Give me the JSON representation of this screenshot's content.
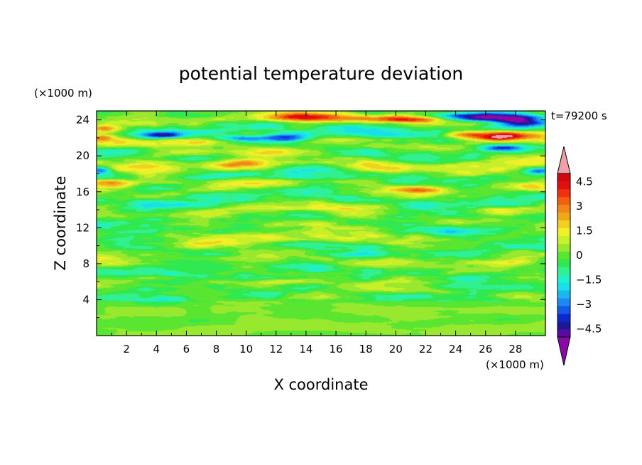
{
  "chart_data": {
    "type": "heatmap",
    "title": "potential temperature deviation",
    "xlabel": "X coordinate",
    "ylabel": "Z coordinate",
    "x_unit": "(×1000 m)",
    "y_unit": "(×1000 m)",
    "time_label": "t=79200 s",
    "xlim": [
      0,
      30
    ],
    "ylim": [
      0,
      25
    ],
    "x_ticks": [
      2,
      4,
      6,
      8,
      10,
      12,
      14,
      16,
      18,
      20,
      22,
      24,
      26,
      28
    ],
    "y_ticks": [
      4,
      8,
      12,
      16,
      20,
      24
    ],
    "colorbar": {
      "levels": [
        -5.5,
        -5,
        -4.5,
        -4,
        -3.5,
        -3,
        -2.5,
        -2,
        -1.5,
        -1,
        -0.5,
        0,
        0.5,
        1,
        1.5,
        2,
        2.5,
        3,
        3.5,
        4,
        4.5,
        5,
        5.5
      ],
      "labels": [
        "4.5",
        "3",
        "1.5",
        "0",
        "−1.5",
        "−3",
        "−4.5"
      ],
      "label_values": [
        4.5,
        3,
        1.5,
        0,
        -1.5,
        -3,
        -4.5
      ],
      "colors": [
        "#8a0aa8",
        "#5a0aa0",
        "#1a1a98",
        "#0a2ad0",
        "#1656e8",
        "#1e8af0",
        "#18b8f0",
        "#18e0e8",
        "#20f0c8",
        "#30f090",
        "#30e850",
        "#5ae630",
        "#98e830",
        "#c8f028",
        "#f0f028",
        "#f0d020",
        "#f0a818",
        "#f08818",
        "#f06010",
        "#f03010",
        "#e01010",
        "#d00810",
        "#f0a0a8"
      ],
      "under_color": "#8a0aa8",
      "over_color": "#f0a0a8"
    },
    "features": [
      {
        "x": 27.5,
        "z": 24.2,
        "sx": 2.6,
        "sz": 0.5,
        "amp": -5.5
      },
      {
        "x": 25.0,
        "z": 24.4,
        "sx": 1.8,
        "sz": 0.4,
        "amp": -3.5
      },
      {
        "x": 28.5,
        "z": 23.6,
        "sx": 1.5,
        "sz": 0.4,
        "amp": -3.0
      },
      {
        "x": 13.5,
        "z": 24.3,
        "sx": 3.5,
        "sz": 0.45,
        "amp": 3.8
      },
      {
        "x": 18.5,
        "z": 24.1,
        "sx": 2.5,
        "sz": 0.4,
        "amp": 3.0
      },
      {
        "x": 21.5,
        "z": 24.0,
        "sx": 1.5,
        "sz": 0.4,
        "amp": 2.2
      },
      {
        "x": 27.0,
        "z": 22.2,
        "sx": 2.0,
        "sz": 0.5,
        "amp": 5.6
      },
      {
        "x": 24.5,
        "z": 22.4,
        "sx": 1.2,
        "sz": 0.4,
        "amp": 3.0
      },
      {
        "x": 27.0,
        "z": 20.9,
        "sx": 1.4,
        "sz": 0.35,
        "amp": -4.2
      },
      {
        "x": 12.5,
        "z": 22.0,
        "sx": 1.8,
        "sz": 0.5,
        "amp": -4.5
      },
      {
        "x": 9.5,
        "z": 22.0,
        "sx": 1.5,
        "sz": 0.4,
        "amp": -2.8
      },
      {
        "x": 4.5,
        "z": 22.3,
        "sx": 1.3,
        "sz": 0.35,
        "amp": -3.5
      },
      {
        "x": 0.5,
        "z": 23.0,
        "sx": 1.0,
        "sz": 0.4,
        "amp": 3.0
      },
      {
        "x": 0.3,
        "z": 22.0,
        "sx": 0.8,
        "sz": 0.4,
        "amp": 2.5
      },
      {
        "x": 7.0,
        "z": 20.3,
        "sx": 2.5,
        "sz": 0.5,
        "amp": 2.0
      },
      {
        "x": 12.0,
        "z": 20.5,
        "sx": 2.5,
        "sz": 0.5,
        "amp": 2.2
      },
      {
        "x": 3.0,
        "z": 20.7,
        "sx": 2.0,
        "sz": 0.5,
        "amp": -1.8
      },
      {
        "x": 29.5,
        "z": 18.3,
        "sx": 0.9,
        "sz": 0.4,
        "amp": -2.8
      },
      {
        "x": 0.3,
        "z": 18.4,
        "sx": 0.7,
        "sz": 0.4,
        "amp": -2.6
      },
      {
        "x": 20.0,
        "z": 18.8,
        "sx": 2.5,
        "sz": 0.5,
        "amp": 1.8
      },
      {
        "x": 9.0,
        "z": 19.0,
        "sx": 2.0,
        "sz": 0.5,
        "amp": 1.6
      },
      {
        "x": 1.0,
        "z": 17.0,
        "sx": 1.3,
        "sz": 0.45,
        "amp": 2.5
      },
      {
        "x": 22.0,
        "z": 16.2,
        "sx": 2.0,
        "sz": 0.45,
        "amp": 1.9
      },
      {
        "x": 29.0,
        "z": 16.6,
        "sx": 1.2,
        "sz": 0.45,
        "amp": 1.6
      },
      {
        "x": 15.0,
        "z": 17.0,
        "sx": 2.5,
        "sz": 0.5,
        "amp": -1.2
      },
      {
        "x": 8.0,
        "z": 15.5,
        "sx": 3.0,
        "sz": 0.5,
        "amp": -1.0
      },
      {
        "x": 27.0,
        "z": 13.8,
        "sx": 2.0,
        "sz": 0.45,
        "amp": 1.7
      },
      {
        "x": 19.0,
        "z": 14.5,
        "sx": 2.5,
        "sz": 0.4,
        "amp": 1.3
      },
      {
        "x": 5.0,
        "z": 13.0,
        "sx": 2.5,
        "sz": 0.4,
        "amp": -1.2
      },
      {
        "x": 14.0,
        "z": 12.5,
        "sx": 3.0,
        "sz": 0.4,
        "amp": 1.0
      },
      {
        "x": 24.0,
        "z": 11.5,
        "sx": 2.5,
        "sz": 0.4,
        "amp": -1.0
      },
      {
        "x": 8.5,
        "z": 10.2,
        "sx": 2.5,
        "sz": 0.4,
        "amp": 1.0
      },
      {
        "x": 17.0,
        "z": 9.0,
        "sx": 3.0,
        "sz": 0.4,
        "amp": -0.9
      },
      {
        "x": 26.0,
        "z": 8.0,
        "sx": 2.5,
        "sz": 0.4,
        "amp": 0.8
      },
      {
        "x": 12.5,
        "z": 6.0,
        "sx": 3.0,
        "sz": 0.35,
        "amp": 1.0
      },
      {
        "x": 22.0,
        "z": 5.5,
        "sx": 2.5,
        "sz": 0.35,
        "amp": -0.8
      },
      {
        "x": 20.0,
        "z": 4.5,
        "sx": 4.0,
        "sz": 0.3,
        "amp": -0.9
      }
    ],
    "noise_amp": 1.0,
    "noise_scale_x": 3.5,
    "noise_scale_z": 0.9,
    "base": 0.25
  }
}
